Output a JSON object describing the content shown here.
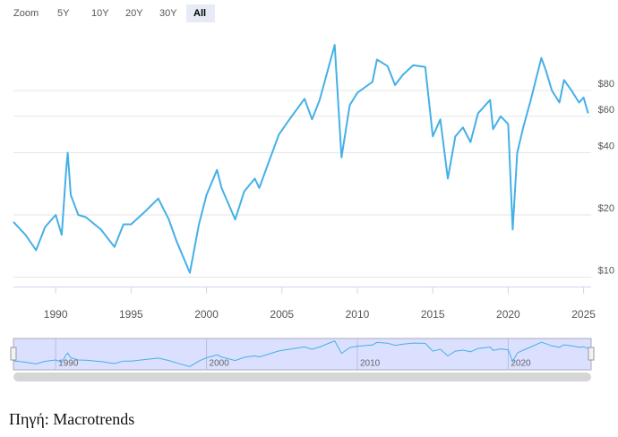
{
  "chart_data": {
    "type": "line",
    "zoom_label": "Zoom",
    "zoom_buttons": [
      "5Y",
      "10Y",
      "20Y",
      "30Y",
      "All"
    ],
    "selected_button": 4,
    "x": [
      1987.2,
      1988.0,
      1988.7,
      1989.3,
      1990.0,
      1990.4,
      1990.7,
      1990.8,
      1991.0,
      1991.5,
      1992.0,
      1993.0,
      1993.9,
      1994.5,
      1995.0,
      1996.0,
      1996.8,
      1997.5,
      1998.0,
      1998.9,
      1999.5,
      2000.0,
      2000.7,
      2001.0,
      2001.9,
      2002.5,
      2003.2,
      2003.5,
      2004.0,
      2004.8,
      2005.5,
      2006.5,
      2007.0,
      2007.5,
      2008.5,
      2008.95,
      2009.5,
      2010.0,
      2011.0,
      2011.3,
      2012.0,
      2012.5,
      2013.0,
      2013.7,
      2014.5,
      2015.0,
      2015.5,
      2016.0,
      2016.5,
      2017.0,
      2017.5,
      2018.0,
      2018.8,
      2019.0,
      2019.5,
      2020.0,
      2020.3,
      2020.6,
      2021.0,
      2021.5,
      2022.2,
      2022.5,
      2022.9,
      2023.4,
      2023.7,
      2024.2,
      2024.7,
      2025.0,
      2025.3
    ],
    "values": [
      18.5,
      16,
      13.5,
      17.5,
      20,
      16,
      33,
      40,
      25,
      20,
      19.5,
      17,
      14,
      18,
      18,
      21,
      24,
      19,
      15,
      10.5,
      18,
      25,
      33,
      27,
      19,
      26,
      30,
      27,
      34,
      49,
      58,
      73,
      58,
      72,
      133,
      38,
      68,
      78,
      88,
      113,
      105,
      85,
      95,
      106,
      104,
      48,
      58,
      30,
      48,
      53,
      45,
      62,
      72,
      52,
      60,
      55,
      17,
      40,
      53,
      72,
      115,
      100,
      80,
      70,
      90,
      80,
      70,
      74,
      62
    ],
    "color": "#45b0e6",
    "log_y": true,
    "ylim": [
      9,
      140
    ],
    "yticks": [
      {
        "value": 10,
        "label": "$10"
      },
      {
        "value": 20,
        "label": "$20"
      },
      {
        "value": 40,
        "label": "$40"
      },
      {
        "value": 60,
        "label": "$60"
      },
      {
        "value": 80,
        "label": "$80"
      }
    ],
    "xlim": [
      1987.2,
      2025.5
    ],
    "xticks": [
      1990,
      1995,
      2000,
      2005,
      2010,
      2015,
      2020,
      2025
    ],
    "grid": true,
    "navigator_ticks": [
      1990,
      2000,
      2010,
      2020
    ],
    "source": "Πηγή: Macrotrends"
  }
}
